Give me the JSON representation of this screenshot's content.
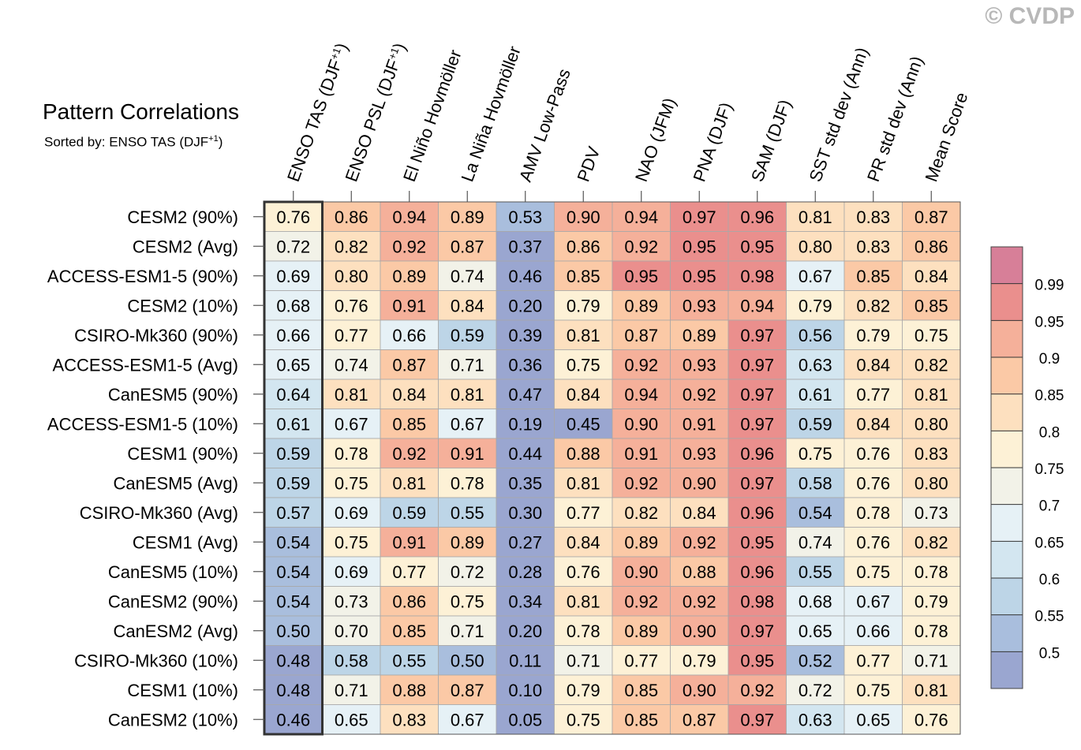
{
  "watermark": "© CVDP",
  "title": "Pattern Correlations",
  "subtitle_prefix": "Sorted by: ENSO TAS (DJF",
  "subtitle_sup": "+1",
  "subtitle_suffix": ")",
  "chart_data": {
    "type": "heatmap",
    "title": "Pattern Correlations",
    "columns": [
      {
        "label": "ENSO TAS (DJF",
        "sup": "+1",
        "suffix": ")"
      },
      {
        "label": "ENSO PSL (DJF",
        "sup": "+1",
        "suffix": ")"
      },
      {
        "label": "El Niño Hovmöller"
      },
      {
        "label": "La Niña Hovmöller"
      },
      {
        "label": "AMV Low-Pass"
      },
      {
        "label": "PDV"
      },
      {
        "label": "NAO (JFM)"
      },
      {
        "label": "PNA (DJF)"
      },
      {
        "label": "SAM (DJF)"
      },
      {
        "label": "SST std dev (Ann)"
      },
      {
        "label": "PR std dev (Ann)"
      },
      {
        "label": "Mean Score"
      }
    ],
    "rows": [
      "CESM2 (90%)",
      "CESM2 (Avg)",
      "ACCESS-ESM1-5 (90%)",
      "CESM2 (10%)",
      "CSIRO-Mk360 (90%)",
      "ACCESS-ESM1-5 (Avg)",
      "CanESM5 (90%)",
      "ACCESS-ESM1-5 (10%)",
      "CESM1 (90%)",
      "CanESM5 (Avg)",
      "CSIRO-Mk360 (Avg)",
      "CESM1 (Avg)",
      "CanESM5 (10%)",
      "CanESM2 (90%)",
      "CanESM2 (Avg)",
      "CSIRO-Mk360 (10%)",
      "CESM1 (10%)",
      "CanESM2 (10%)"
    ],
    "values": [
      [
        "0.76",
        "0.86",
        "0.94",
        "0.89",
        "0.53",
        "0.90",
        "0.94",
        "0.97",
        "0.96",
        "0.81",
        "0.83",
        "0.87"
      ],
      [
        "0.72",
        "0.82",
        "0.92",
        "0.87",
        "0.37",
        "0.86",
        "0.92",
        "0.95",
        "0.95",
        "0.80",
        "0.83",
        "0.86"
      ],
      [
        "0.69",
        "0.80",
        "0.89",
        "0.74",
        "0.46",
        "0.85",
        "0.95",
        "0.95",
        "0.98",
        "0.67",
        "0.85",
        "0.84"
      ],
      [
        "0.68",
        "0.76",
        "0.91",
        "0.84",
        "0.20",
        "0.79",
        "0.89",
        "0.93",
        "0.94",
        "0.79",
        "0.82",
        "0.85"
      ],
      [
        "0.66",
        "0.77",
        "0.66",
        "0.59",
        "0.39",
        "0.81",
        "0.87",
        "0.89",
        "0.97",
        "0.56",
        "0.79",
        "0.75"
      ],
      [
        "0.65",
        "0.74",
        "0.87",
        "0.71",
        "0.36",
        "0.75",
        "0.92",
        "0.93",
        "0.97",
        "0.63",
        "0.84",
        "0.82"
      ],
      [
        "0.64",
        "0.81",
        "0.84",
        "0.81",
        "0.47",
        "0.84",
        "0.94",
        "0.92",
        "0.97",
        "0.61",
        "0.77",
        "0.81"
      ],
      [
        "0.61",
        "0.67",
        "0.85",
        "0.67",
        "0.19",
        "0.45",
        "0.90",
        "0.91",
        "0.97",
        "0.59",
        "0.84",
        "0.80"
      ],
      [
        "0.59",
        "0.78",
        "0.92",
        "0.91",
        "0.44",
        "0.88",
        "0.91",
        "0.93",
        "0.96",
        "0.75",
        "0.76",
        "0.83"
      ],
      [
        "0.59",
        "0.75",
        "0.81",
        "0.78",
        "0.35",
        "0.81",
        "0.92",
        "0.90",
        "0.97",
        "0.58",
        "0.76",
        "0.80"
      ],
      [
        "0.57",
        "0.69",
        "0.59",
        "0.55",
        "0.30",
        "0.77",
        "0.82",
        "0.84",
        "0.96",
        "0.54",
        "0.78",
        "0.73"
      ],
      [
        "0.54",
        "0.75",
        "0.91",
        "0.89",
        "0.27",
        "0.84",
        "0.89",
        "0.92",
        "0.95",
        "0.74",
        "0.76",
        "0.82"
      ],
      [
        "0.54",
        "0.69",
        "0.77",
        "0.72",
        "0.28",
        "0.76",
        "0.90",
        "0.88",
        "0.96",
        "0.55",
        "0.75",
        "0.78"
      ],
      [
        "0.54",
        "0.73",
        "0.86",
        "0.75",
        "0.34",
        "0.81",
        "0.92",
        "0.92",
        "0.98",
        "0.68",
        "0.67",
        "0.79"
      ],
      [
        "0.50",
        "0.70",
        "0.85",
        "0.71",
        "0.20",
        "0.78",
        "0.89",
        "0.90",
        "0.97",
        "0.65",
        "0.66",
        "0.78"
      ],
      [
        "0.48",
        "0.58",
        "0.55",
        "0.50",
        "0.11",
        "0.71",
        "0.77",
        "0.79",
        "0.95",
        "0.52",
        "0.77",
        "0.71"
      ],
      [
        "0.48",
        "0.71",
        "0.88",
        "0.87",
        "0.10",
        "0.79",
        "0.85",
        "0.90",
        "0.92",
        "0.72",
        "0.75",
        "0.81"
      ],
      [
        "0.46",
        "0.65",
        "0.83",
        "0.67",
        "0.05",
        "0.75",
        "0.85",
        "0.87",
        "0.97",
        "0.63",
        "0.65",
        "0.76"
      ]
    ],
    "highlighted_column": 0,
    "colorbar": {
      "levels": [
        "0.5",
        "0.55",
        "0.6",
        "0.65",
        "0.7",
        "0.75",
        "0.8",
        "0.85",
        "0.9",
        "0.95",
        "0.99"
      ],
      "colors": [
        "#9aa6d0",
        "#a9bedd",
        "#bdd5e7",
        "#d3e6f0",
        "#e6f1f6",
        "#f2f2e8",
        "#fdf1d6",
        "#fde0bf",
        "#fbc9a6",
        "#f5b09a",
        "#ea8f8d",
        "#d77f98"
      ]
    }
  }
}
